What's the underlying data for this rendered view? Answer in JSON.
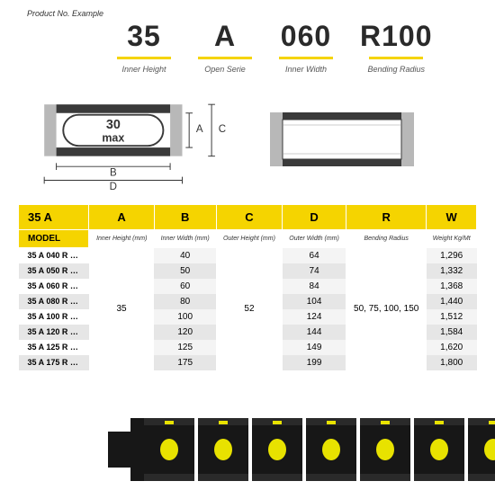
{
  "header": {
    "product_label": "Product No. Example",
    "codes": [
      {
        "value": "35",
        "sub": "Inner Height"
      },
      {
        "value": "A",
        "sub": "Open Serie"
      },
      {
        "value": "060",
        "sub": "Inner Width"
      },
      {
        "value": "R100",
        "sub": "Bending Radius"
      }
    ],
    "underline_color": "#f5d400",
    "text_color": "#2a2a2a",
    "value_fontsize": 32,
    "sub_fontsize": 9
  },
  "diagram": {
    "max_label": "30 max",
    "dim_labels": {
      "A": "A",
      "B": "B",
      "C": "C",
      "D": "D"
    },
    "colors": {
      "grey": "#b8b8b8",
      "dark": "#3a3a3a",
      "line": "#333333",
      "bg": "#ffffff"
    }
  },
  "table": {
    "header_bg": "#f5d400",
    "shade_odd": "#e6e6e6",
    "shade_even": "#f4f4f4",
    "title_cell": "35 A",
    "headers": [
      "A",
      "B",
      "C",
      "D",
      "R",
      "W"
    ],
    "model_label": "MODEL",
    "subheaders": [
      "Inner Height (mm)",
      "Inner Width (mm)",
      "Outer Height (mm)",
      "Outer Width (mm)",
      "Bending Radius",
      "Weight Kg/Mt"
    ],
    "span_A": "35",
    "span_C": "52",
    "span_R": "50, 75, 100, 150",
    "rows": [
      {
        "model": "35 A 040 R …",
        "B": "40",
        "D": "64",
        "W": "1,296"
      },
      {
        "model": "35 A 050 R …",
        "B": "50",
        "D": "74",
        "W": "1,332"
      },
      {
        "model": "35 A 060 R …",
        "B": "60",
        "D": "84",
        "W": "1,368"
      },
      {
        "model": "35 A 080 R …",
        "B": "80",
        "D": "104",
        "W": "1,440"
      },
      {
        "model": "35 A 100 R …",
        "B": "100",
        "D": "124",
        "W": "1,512"
      },
      {
        "model": "35 A 120 R …",
        "B": "120",
        "D": "144",
        "W": "1,584"
      },
      {
        "model": "35 A 125 R …",
        "B": "125",
        "D": "149",
        "W": "1,620"
      },
      {
        "model": "35 A 175 R …",
        "B": "175",
        "D": "199",
        "W": "1,800"
      }
    ]
  },
  "chain": {
    "body_color": "#171717",
    "dot_color": "#e8e200",
    "links": 7
  }
}
